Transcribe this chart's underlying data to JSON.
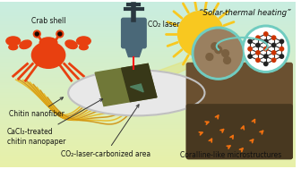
{
  "bg_top_color": "#c8ede0",
  "bg_bottom_color": "#e8f0a8",
  "labels": {
    "crab_shell": "Crab shell",
    "co2_laser": "CO₂ laser",
    "solar_thermal": "“Solar-thermal heating”",
    "chitin_nanofiber": "Chitin nanofiber",
    "cacl2_nanopaper": "CaCl₂-treated\nchitin nanopaper",
    "carbonized_area": "CO₂-laser-carbonized area",
    "coralline": "Coralline-like microstructures"
  },
  "crab_color": "#e84010",
  "fiber_color": "#e8b820",
  "fiber_color2": "#d09010",
  "plate_color": "#e8e8e8",
  "plate_edge_color": "#c0c0c0",
  "paper_color": "#707838",
  "carbonized_color": "#383818",
  "laser_body_color": "#4a6878",
  "laser_beam_color": "#ff1010",
  "sun_color": "#f8c820",
  "light_beam_color": "#e8e060",
  "teal_circle_color": "#70ccc0",
  "sem_bg_color": "#806040",
  "sem_dark_color": "#504030",
  "graphene_lattice_color": "#ffffff",
  "graphene_node_color_red": "#cc3300",
  "graphene_node_color_black": "#222222",
  "graphene_edge_color": "#333333",
  "orange_arrow_color": "#f07010",
  "label_fontsize": 5.5,
  "solar_thermal_fontsize": 6.2
}
